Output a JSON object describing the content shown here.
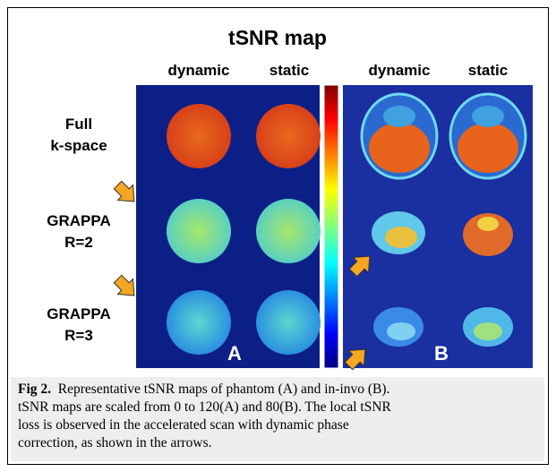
{
  "figure": {
    "title": "tSNR map",
    "columns": [
      "dynamic",
      "static",
      "dynamic",
      "static"
    ],
    "rows": [
      [
        "Full",
        "k-space"
      ],
      [
        "GRAPPA",
        "R=2"
      ],
      [
        "GRAPPA",
        "R=3"
      ]
    ],
    "panels": [
      "A",
      "B"
    ],
    "caption": {
      "label": "Fig 2.",
      "lines": [
        "Representative tSNR maps of phantom (A) and in-invo (B).",
        "tSNR maps are scaled from 0 to 120(A) and 80(B). The local tSNR",
        "loss is observed in the accelerated scan with dynamic phase",
        "correction, as shown in the arrows."
      ]
    }
  }
}
